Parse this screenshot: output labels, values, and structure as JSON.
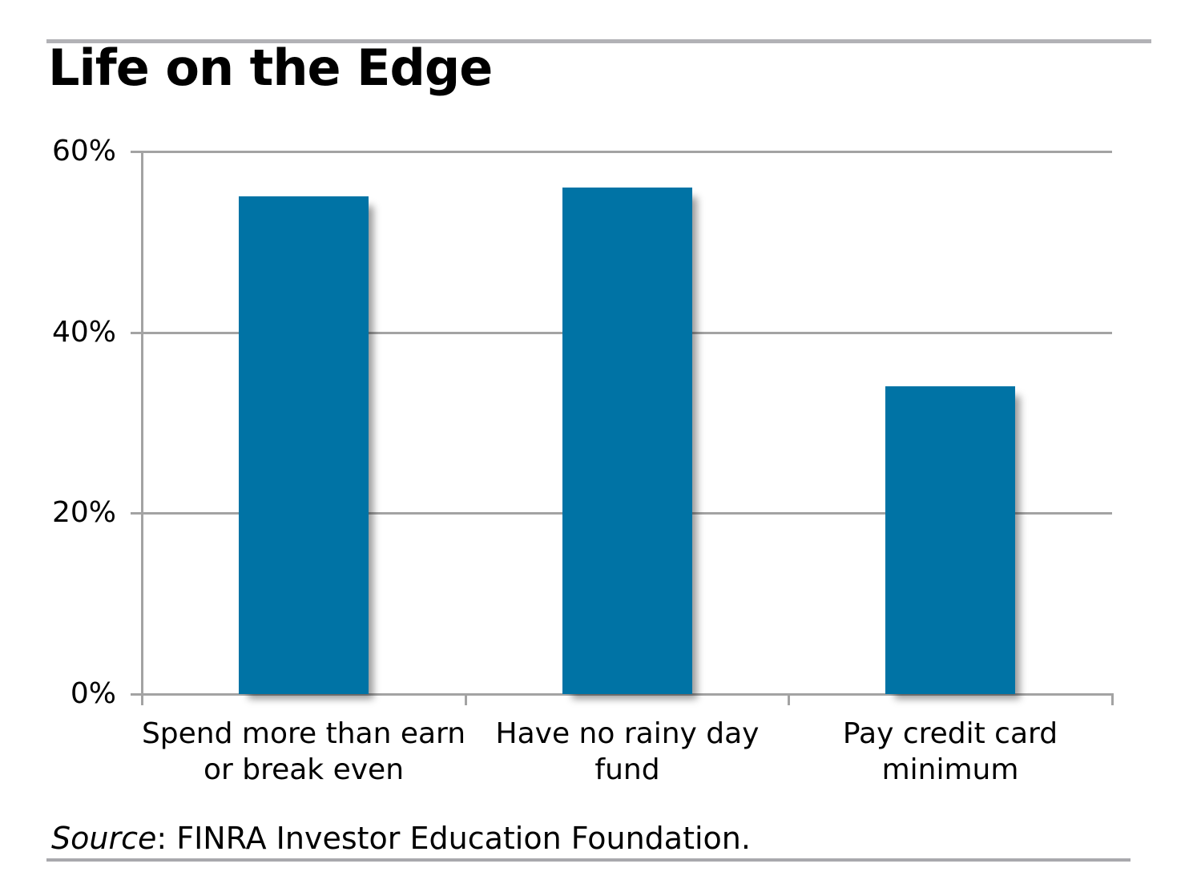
{
  "title": "Life on the Edge",
  "source": {
    "word": "Source",
    "rest": ": FINRA Investor Education Foundation."
  },
  "chart_data": {
    "type": "bar",
    "title": "Life on the Edge",
    "categories": [
      "Spend more than earn\nor break even",
      "Have no rainy day\nfund",
      "Pay credit card\nminimum"
    ],
    "values": [
      55,
      56,
      34
    ],
    "xlabel": "",
    "ylabel": "",
    "ylim": [
      0,
      60
    ],
    "yticks": [
      0,
      20,
      40,
      60
    ],
    "ytick_suffix": "%",
    "grid": "horizontal",
    "legend": "none",
    "bar_color": "#0073a5",
    "grid_color": "#a3a3a3",
    "text_color": "#000000"
  }
}
